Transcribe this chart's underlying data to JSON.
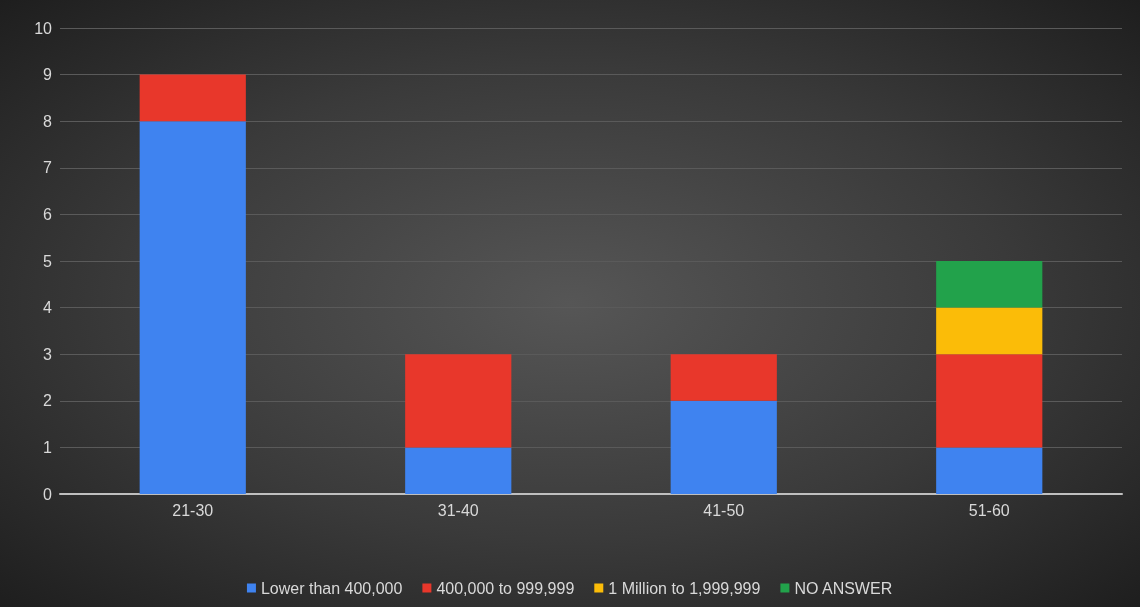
{
  "chart_data": {
    "type": "bar",
    "stacked": true,
    "categories": [
      "21-30",
      "31-40",
      "41-50",
      "51-60"
    ],
    "series": [
      {
        "name": "Lower than 400,000",
        "color": "#3f83f0",
        "values": [
          8,
          1,
          2,
          1
        ]
      },
      {
        "name": "400,000 to 999,999",
        "color": "#e8372b",
        "values": [
          1,
          2,
          1,
          2
        ]
      },
      {
        "name": "1 Million to 1,999,999",
        "color": "#fbbc08",
        "values": [
          null,
          null,
          null,
          1
        ]
      },
      {
        "name": "NO ANSWER",
        "color": "#22a24b",
        "values": [
          null,
          null,
          null,
          1
        ]
      }
    ],
    "ylim": [
      0,
      10
    ],
    "yticks": [
      0,
      1,
      2,
      3,
      4,
      5,
      6,
      7,
      8,
      9,
      10
    ],
    "grid": "y",
    "legend": "bottom"
  }
}
